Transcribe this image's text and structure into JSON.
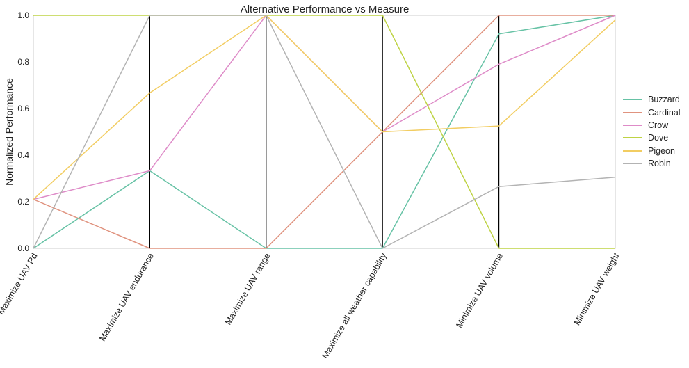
{
  "chart_data": {
    "type": "line",
    "title": "Alternative Performance vs Measure",
    "xlabel": "",
    "ylabel": "Normalized Performance",
    "ylim": [
      0,
      1
    ],
    "yticks": [
      "0.0",
      "0.2",
      "0.4",
      "0.6",
      "0.8",
      "1.0"
    ],
    "categories": [
      "Maximize UAV Pd",
      "Maximize UAV endurance",
      "Maximize UAV range",
      "Maximize all weather capability",
      "Minimize UAV volume",
      "Minimize UAV weight"
    ],
    "grid": false,
    "legend_position": "right",
    "series": [
      {
        "name": "Buzzard",
        "color": "#66c2a5",
        "values": [
          0.0,
          0.333,
          0.0,
          0.0,
          0.92,
          1.0
        ]
      },
      {
        "name": "Cardinal",
        "color": "#e0937f",
        "values": [
          0.21,
          0.0,
          0.0,
          0.5,
          1.0,
          1.0
        ]
      },
      {
        "name": "Crow",
        "color": "#de8bc8",
        "values": [
          0.21,
          0.333,
          1.0,
          0.5,
          0.79,
          1.0
        ]
      },
      {
        "name": "Dove",
        "color": "#bed344",
        "values": [
          1.0,
          1.0,
          1.0,
          1.0,
          0.0,
          0.0
        ]
      },
      {
        "name": "Pigeon",
        "color": "#f2cd62",
        "values": [
          0.21,
          0.667,
          1.0,
          0.5,
          0.525,
          0.98
        ]
      },
      {
        "name": "Robin",
        "color": "#b3b3b3",
        "values": [
          0.0,
          1.0,
          1.0,
          0.0,
          0.265,
          0.305
        ]
      }
    ]
  }
}
